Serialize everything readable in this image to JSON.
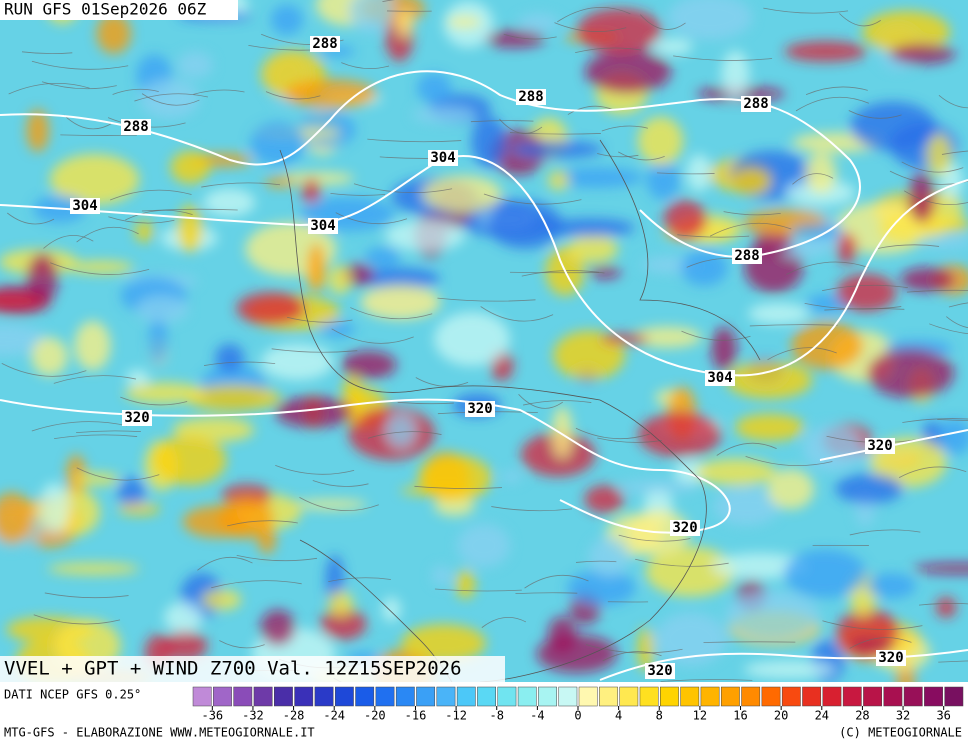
{
  "header": {
    "run_label": "RUN GFS 01Sep2026 06Z",
    "product_label": "VVEL + GPT + WIND Z700 Val. 12Z15SEP2026",
    "source_label": "DATI NCEP GFS 0.25°",
    "credit_left": "MTG-GFS - ELABORAZIONE WWW.METEOGIORNALE.IT",
    "credit_right": "(C) METEOGIORNALE"
  },
  "contour_labels": [
    "288",
    "288",
    "288",
    "288",
    "288",
    "304",
    "304",
    "304",
    "304",
    "320",
    "320",
    "320",
    "320",
    "320",
    "320"
  ],
  "colorbar": {
    "range": [
      -38,
      38
    ],
    "ticks": [
      -36,
      -32,
      -28,
      -24,
      -20,
      -16,
      -12,
      -8,
      -4,
      0,
      4,
      8,
      12,
      16,
      20,
      24,
      28,
      32,
      36
    ],
    "colors": [
      "#c08ad8",
      "#a066c8",
      "#8a4cb8",
      "#6e3aa8",
      "#4a2ea8",
      "#3a30b8",
      "#2a3ac8",
      "#1e48d8",
      "#1a5ce8",
      "#2070f0",
      "#2a88f4",
      "#3aa0f6",
      "#4ab4f8",
      "#4cc8f8",
      "#5ad8f4",
      "#70e4f0",
      "#8aeef0",
      "#a8f4f2",
      "#c8f8f4",
      "#fff8b0",
      "#fff080",
      "#ffe850",
      "#ffe020",
      "#ffd400",
      "#ffc400",
      "#ffb400",
      "#ffa000",
      "#ff8a00",
      "#ff6a00",
      "#f84a10",
      "#e83020",
      "#d82030",
      "#c81840",
      "#b81448",
      "#a81050",
      "#981058",
      "#880c60",
      "#781060"
    ]
  }
}
